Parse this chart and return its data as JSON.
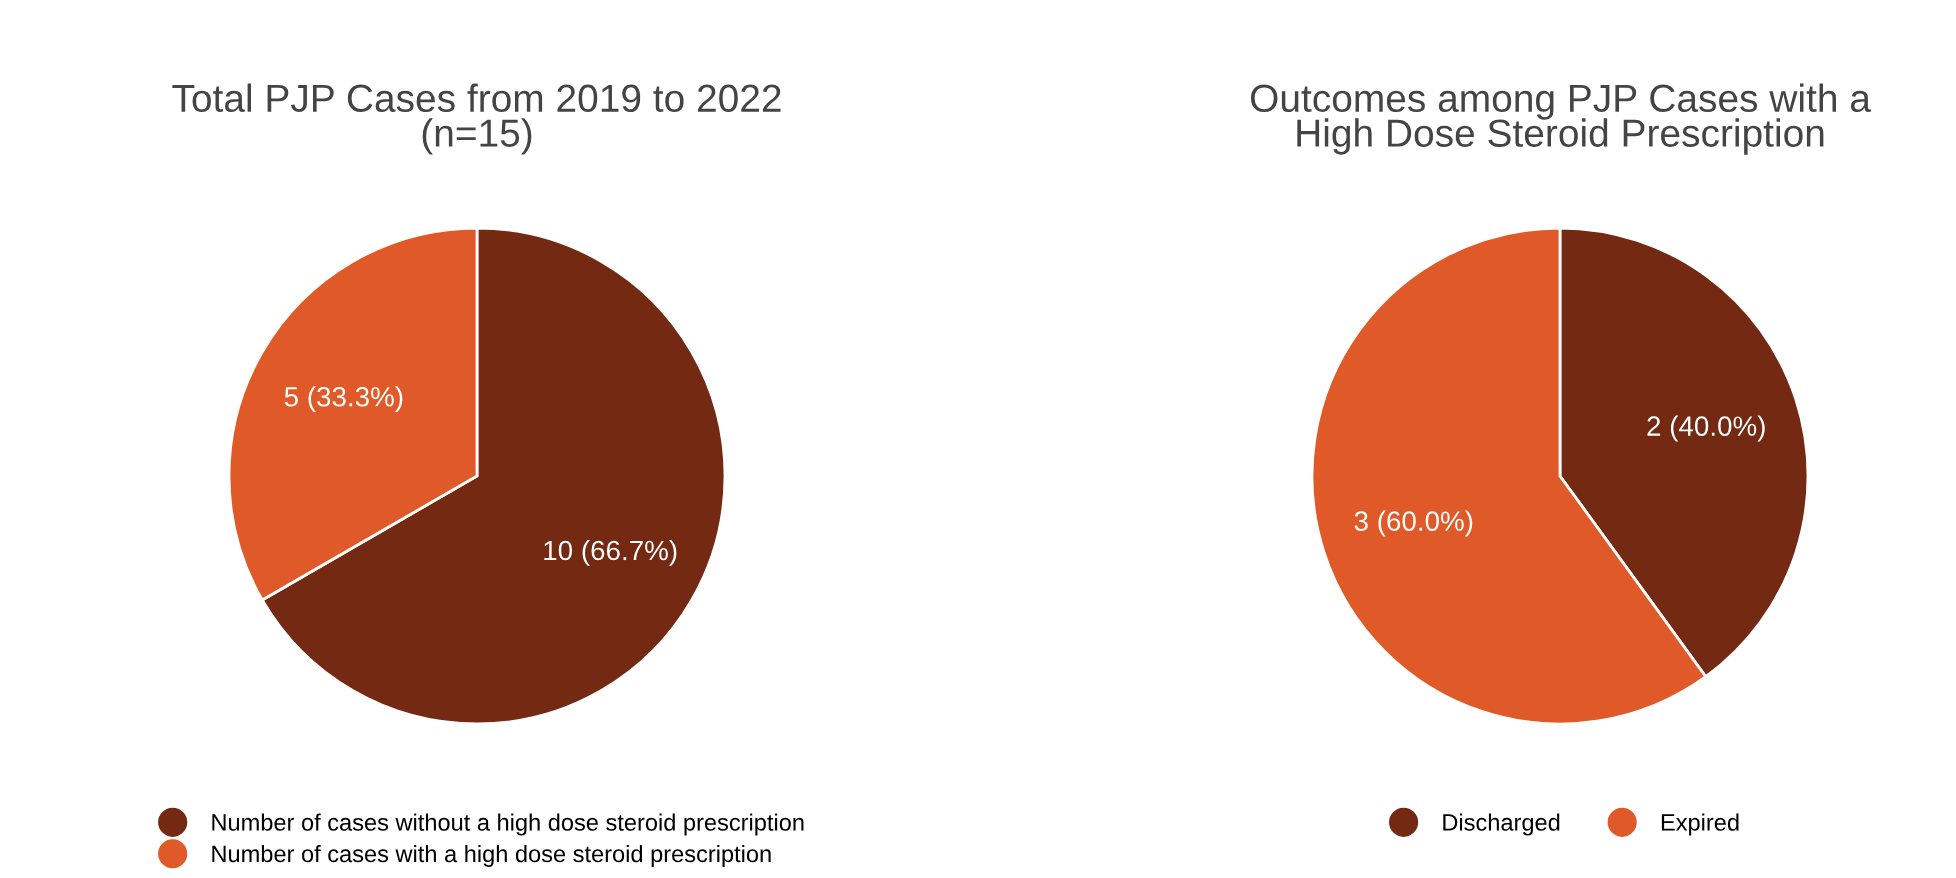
{
  "chart_data": [
    {
      "type": "pie",
      "title": "Total PJP Cases from 2019 to 2022\n(n=15)",
      "categories": [
        "Number of cases without a high dose steroid prescription",
        "Number of cases with a high dose steroid prescription"
      ],
      "values": [
        10,
        5
      ],
      "colors": [
        "#742913",
        "#e05a29"
      ],
      "value_labels": [
        "10 (66.7%)",
        "5 (33.3%)"
      ],
      "legend": "bottom"
    },
    {
      "type": "pie",
      "title": "Outcomes among PJP Cases with a\nHigh Dose Steroid Prescription",
      "categories": [
        "Discharged",
        "Expired"
      ],
      "values": [
        2,
        3
      ],
      "colors": [
        "#742913",
        "#e05a29"
      ],
      "value_labels": [
        "2 (40.0%)",
        "3 (60.0%)"
      ],
      "legend": "bottom"
    }
  ]
}
